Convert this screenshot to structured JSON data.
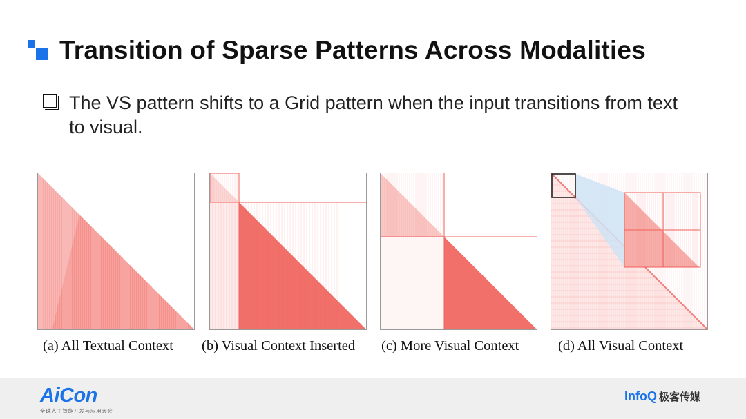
{
  "title": "Transition of Sparse Patterns Across Modalities",
  "bullet": "The VS pattern shifts to a Grid pattern when the input transitions from text to visual.",
  "captions": [
    "(a) All Textual Context",
    "(b) Visual Context Inserted",
    "(c) More Visual Context",
    "(d) All Visual Context"
  ],
  "footer": {
    "logo": "AiCon",
    "logo_sub": "全球人工智能开发与应用大会",
    "brand": "InfoQ",
    "brand_cn": "极客传媒"
  },
  "colors": {
    "accent": "#1a73e8",
    "pattern": "#f0605a",
    "inset_fill": "#cfe3f5",
    "frame": "#9a9a9a"
  },
  "icons": [
    "title-mark-icon",
    "checkbox-icon"
  ]
}
